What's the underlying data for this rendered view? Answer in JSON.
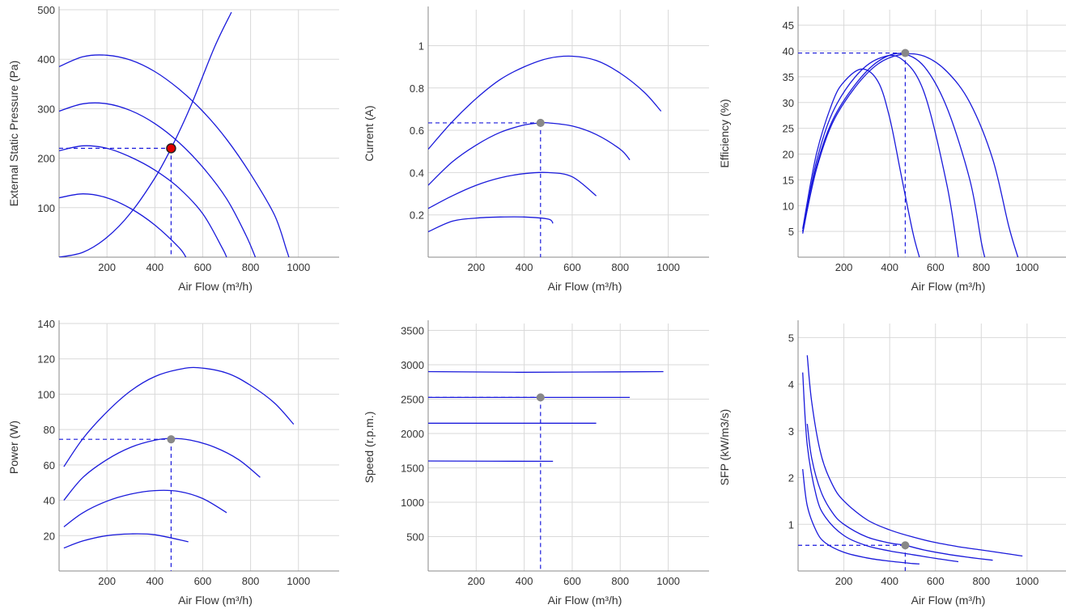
{
  "chart_data": [
    {
      "type": "line",
      "ylabel": "External Static Pressure (Pa)",
      "xlabel": "Air Flow (m³/h)",
      "xlim": [
        0,
        1170
      ],
      "ylim": [
        0,
        500
      ],
      "xticks": [
        "200",
        "400",
        "600",
        "800",
        "1000"
      ],
      "yticks": [
        "100",
        "200",
        "300",
        "400",
        "500"
      ],
      "grid": true,
      "series": [
        {
          "kind": "fan",
          "x": [
            0,
            100,
            200,
            300,
            400,
            500,
            600,
            700,
            800,
            900,
            950,
            960
          ],
          "y": [
            385,
            405,
            408,
            398,
            375,
            340,
            295,
            238,
            168,
            85,
            15,
            0
          ]
        },
        {
          "kind": "fan",
          "x": [
            0,
            100,
            200,
            300,
            400,
            500,
            600,
            700,
            780,
            820
          ],
          "y": [
            295,
            310,
            310,
            296,
            270,
            232,
            182,
            118,
            45,
            0
          ]
        },
        {
          "kind": "fan",
          "x": [
            0,
            100,
            200,
            300,
            400,
            500,
            600,
            680,
            700
          ],
          "y": [
            215,
            225,
            220,
            202,
            176,
            140,
            88,
            20,
            0
          ]
        },
        {
          "kind": "fan",
          "x": [
            0,
            100,
            200,
            300,
            400,
            500,
            530
          ],
          "y": [
            120,
            128,
            120,
            98,
            65,
            20,
            0
          ]
        },
        {
          "kind": "system",
          "x": [
            0,
            100,
            200,
            300,
            400,
            468,
            550,
            650,
            720
          ],
          "y": [
            0,
            10,
            40,
            90,
            160,
            220,
            305,
            425,
            495
          ]
        }
      ],
      "operating_point": {
        "x": 468,
        "y": 220,
        "color": "#e00000"
      }
    },
    {
      "type": "line",
      "ylabel": "Current (A)",
      "xlabel": "Air Flow (m³/h)",
      "xlim": [
        0,
        1170
      ],
      "ylim": [
        0,
        1.17
      ],
      "xticks": [
        "200",
        "400",
        "600",
        "800",
        "1000"
      ],
      "yticks": [
        "0.2",
        "0.4",
        "0.6",
        "0.8",
        "1"
      ],
      "grid": true,
      "series": [
        {
          "x": [
            0,
            100,
            200,
            300,
            400,
            500,
            600,
            700,
            800,
            900,
            970
          ],
          "y": [
            0.51,
            0.64,
            0.75,
            0.84,
            0.9,
            0.94,
            0.95,
            0.93,
            0.87,
            0.78,
            0.69
          ]
        },
        {
          "x": [
            0,
            100,
            200,
            300,
            400,
            468,
            500,
            600,
            700,
            800,
            840
          ],
          "y": [
            0.34,
            0.45,
            0.53,
            0.59,
            0.625,
            0.635,
            0.635,
            0.62,
            0.58,
            0.51,
            0.46
          ]
        },
        {
          "x": [
            0,
            100,
            200,
            300,
            400,
            500,
            600,
            700
          ],
          "y": [
            0.23,
            0.29,
            0.34,
            0.375,
            0.395,
            0.4,
            0.38,
            0.29
          ]
        },
        {
          "x": [
            0,
            100,
            200,
            300,
            400,
            500,
            520
          ],
          "y": [
            0.12,
            0.17,
            0.185,
            0.19,
            0.19,
            0.18,
            0.16
          ]
        }
      ],
      "operating_point": {
        "x": 468,
        "y": 0.635,
        "color": "#888888"
      }
    },
    {
      "type": "line",
      "ylabel": "Efficiency (%)",
      "xlabel": "Air Flow (m³/h)",
      "xlim": [
        0,
        1170
      ],
      "ylim": [
        0,
        48
      ],
      "xticks": [
        "200",
        "400",
        "600",
        "800",
        "1000"
      ],
      "yticks": [
        "5",
        "10",
        "15",
        "20",
        "25",
        "30",
        "35",
        "40",
        "45"
      ],
      "grid": true,
      "series": [
        {
          "x": [
            20,
            80,
            150,
            250,
            350,
            450,
            550,
            650,
            750,
            850,
            920,
            960
          ],
          "y": [
            5,
            17,
            26,
            33,
            37.5,
            39.3,
            39,
            36,
            30,
            19,
            6,
            0
          ]
        },
        {
          "x": [
            20,
            80,
            150,
            250,
            350,
            450,
            550,
            650,
            750,
            800,
            815
          ],
          "y": [
            4.6,
            17.5,
            26.5,
            33.5,
            38,
            39.5,
            37,
            29,
            15,
            3,
            0
          ]
        },
        {
          "x": [
            20,
            80,
            150,
            250,
            350,
            450,
            550,
            650,
            700
          ],
          "y": [
            5,
            18.5,
            28,
            35,
            38.5,
            38.5,
            32,
            14,
            0
          ]
        },
        {
          "x": [
            20,
            80,
            150,
            200,
            280,
            350,
            400,
            450,
            500,
            530
          ],
          "y": [
            5.5,
            20,
            30,
            34,
            36.5,
            34,
            27,
            16,
            5,
            0
          ]
        }
      ],
      "operating_point": {
        "x": 468,
        "y": 39.6,
        "color": "#888888"
      }
    },
    {
      "type": "line",
      "ylabel": "Power (W)",
      "xlabel": "Air Flow (m³/h)",
      "xlim": [
        0,
        1170
      ],
      "ylim": [
        0,
        140
      ],
      "xticks": [
        "200",
        "400",
        "600",
        "800",
        "1000"
      ],
      "yticks": [
        "20",
        "40",
        "60",
        "80",
        "100",
        "120",
        "140"
      ],
      "grid": true,
      "series": [
        {
          "x": [
            20,
            100,
            200,
            300,
            400,
            500,
            580,
            700,
            800,
            900,
            980
          ],
          "y": [
            59,
            75,
            90,
            102,
            110,
            114,
            115,
            112,
            105,
            95,
            83
          ]
        },
        {
          "x": [
            20,
            100,
            200,
            300,
            400,
            468,
            550,
            650,
            750,
            840
          ],
          "y": [
            40,
            53,
            63,
            70,
            74,
            75,
            74,
            70,
            63,
            53
          ]
        },
        {
          "x": [
            20,
            100,
            200,
            300,
            400,
            500,
            600,
            700
          ],
          "y": [
            25,
            33,
            39.5,
            43.5,
            45.5,
            45,
            41,
            33
          ]
        },
        {
          "x": [
            20,
            100,
            200,
            300,
            400,
            540
          ],
          "y": [
            13,
            17,
            20,
            21,
            20.5,
            16.5
          ]
        }
      ],
      "operating_point": {
        "x": 468,
        "y": 74.5,
        "color": "#888888"
      }
    },
    {
      "type": "line",
      "ylabel": "Speed (r.p.m.)",
      "xlabel": "Air Flow (m³/h)",
      "xlim": [
        0,
        1170
      ],
      "ylim": [
        0,
        3600
      ],
      "xticks": [
        "200",
        "400",
        "600",
        "800",
        "1000"
      ],
      "yticks": [
        "500",
        "1000",
        "1500",
        "2000",
        "2500",
        "3000",
        "3500"
      ],
      "grid": true,
      "series": [
        {
          "x": [
            0,
            400,
            980
          ],
          "y": [
            2900,
            2890,
            2900
          ]
        },
        {
          "x": [
            0,
            840
          ],
          "y": [
            2525,
            2525
          ]
        },
        {
          "x": [
            0,
            700
          ],
          "y": [
            2150,
            2150
          ]
        },
        {
          "x": [
            0,
            520
          ],
          "y": [
            1600,
            1595
          ]
        }
      ],
      "operating_point": {
        "x": 468,
        "y": 2525,
        "color": "#888888"
      }
    },
    {
      "type": "line",
      "ylabel": "SFP (kW/m3/s)",
      "xlabel": "Air Flow (m³/h)",
      "xlim": [
        0,
        1170
      ],
      "ylim": [
        0,
        5.3
      ],
      "xticks": [
        "200",
        "400",
        "600",
        "800",
        "1000"
      ],
      "yticks": [
        "1",
        "2",
        "3",
        "4",
        "5"
      ],
      "grid": true,
      "series": [
        {
          "x": [
            40,
            60,
            100,
            150,
            200,
            300,
            400,
            500,
            600,
            700,
            800,
            900,
            980
          ],
          "y": [
            4.62,
            3.6,
            2.5,
            1.85,
            1.5,
            1.1,
            0.88,
            0.73,
            0.61,
            0.52,
            0.45,
            0.38,
            0.32
          ]
        },
        {
          "x": [
            40,
            60,
            100,
            150,
            200,
            300,
            400,
            468,
            550,
            650,
            750,
            850
          ],
          "y": [
            3.15,
            2.4,
            1.7,
            1.25,
            1.0,
            0.73,
            0.6,
            0.55,
            0.45,
            0.36,
            0.29,
            0.23
          ]
        },
        {
          "x": [
            20,
            40,
            80,
            120,
            200,
            300,
            400,
            500,
            600,
            700
          ],
          "y": [
            4.25,
            2.7,
            1.6,
            1.15,
            0.76,
            0.54,
            0.43,
            0.35,
            0.27,
            0.2
          ]
        },
        {
          "x": [
            20,
            40,
            80,
            120,
            200,
            300,
            400,
            500,
            530
          ],
          "y": [
            2.18,
            1.4,
            0.85,
            0.6,
            0.4,
            0.28,
            0.21,
            0.16,
            0.15
          ]
        }
      ],
      "operating_point": {
        "x": 468,
        "y": 0.55,
        "color": "#888888"
      }
    }
  ]
}
